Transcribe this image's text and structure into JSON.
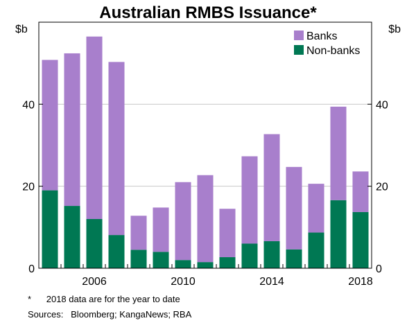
{
  "chart_data": {
    "type": "bar",
    "stacked": true,
    "title": "Australian RMBS Issuance*",
    "ylabel_left": "$b",
    "ylabel_right": "$b",
    "ylim": [
      0,
      60
    ],
    "yticks": [
      0,
      20,
      40
    ],
    "x": [
      2004,
      2005,
      2006,
      2007,
      2008,
      2009,
      2010,
      2011,
      2012,
      2013,
      2014,
      2015,
      2016,
      2017,
      2018
    ],
    "xtick_labels": [
      "2006",
      "2010",
      "2014",
      "2018"
    ],
    "xtick_values": [
      2006,
      2010,
      2014,
      2018
    ],
    "legend_position": "top-right",
    "series": [
      {
        "name": "Non-banks",
        "color": "#007853",
        "values": [
          19,
          15.2,
          12,
          8.1,
          4.5,
          4,
          2,
          1.5,
          2.7,
          6,
          6.6,
          4.6,
          8.7,
          16.6,
          13.7
        ]
      },
      {
        "name": "Banks",
        "color": "#a87fcc",
        "values": [
          31.8,
          37.2,
          44.5,
          42.2,
          8.3,
          10.8,
          19,
          21.2,
          11.8,
          21.3,
          26.1,
          20.1,
          11.9,
          22.8,
          9.9
        ]
      }
    ],
    "legend": [
      "Banks",
      "Non-banks"
    ]
  },
  "footnotes": {
    "note": "*      2018 data are for the year to date",
    "sources": "Sources:   Bloomberg; KangaNews; RBA"
  }
}
